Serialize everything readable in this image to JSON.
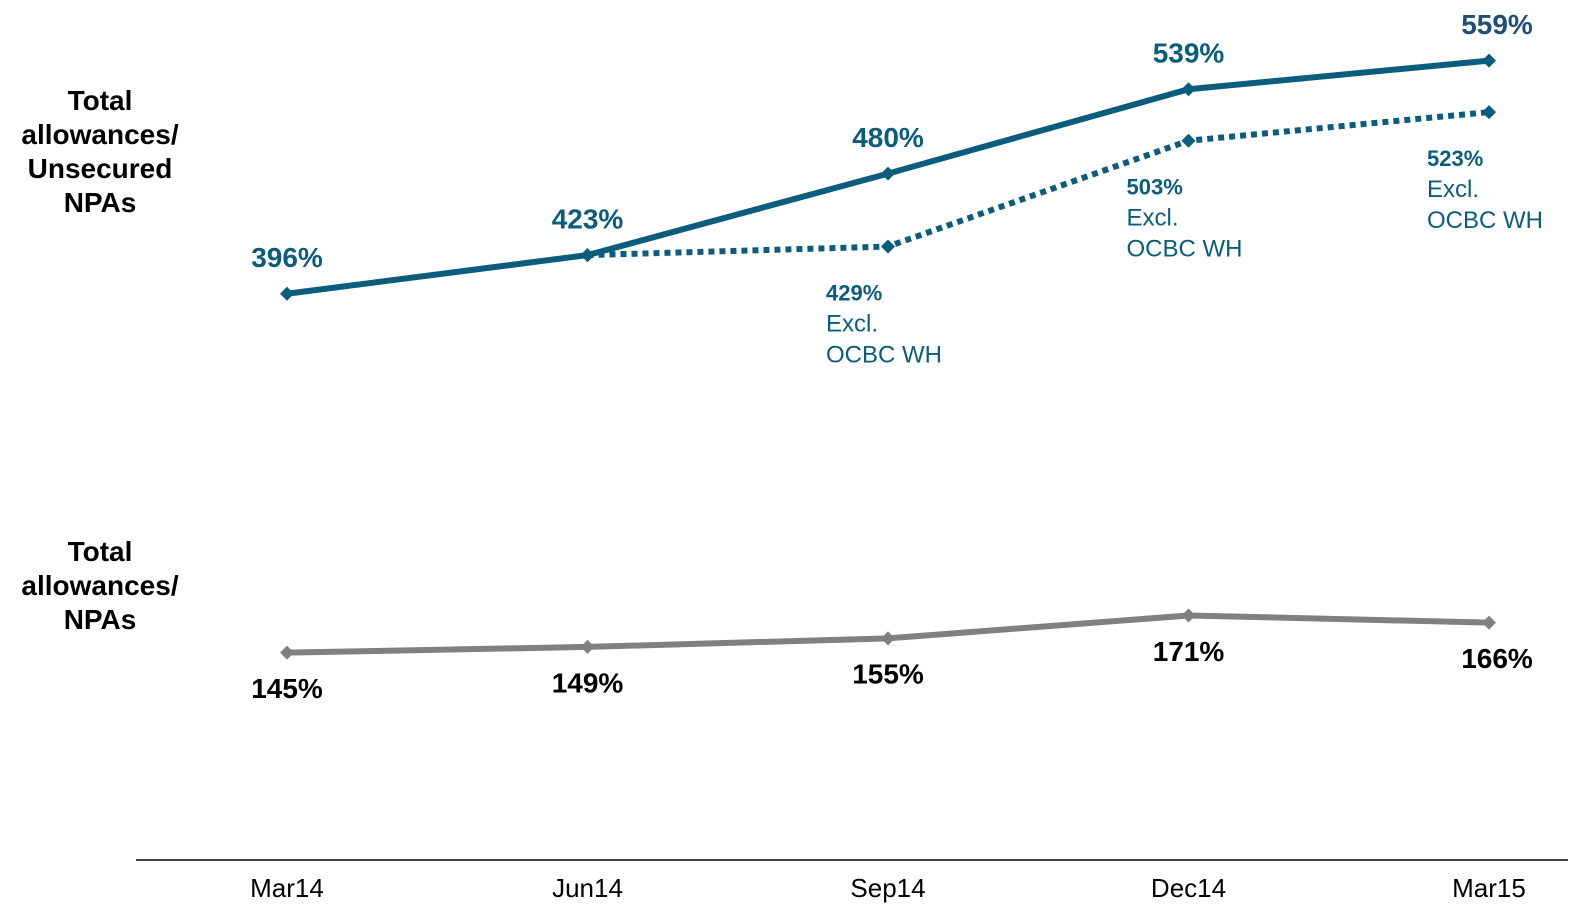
{
  "chart_data": {
    "type": "line",
    "categories": [
      "Mar14",
      "Jun14",
      "Sep14",
      "Dec14",
      "Mar15"
    ],
    "ylim": [
      0,
      600
    ],
    "series": [
      {
        "name": "Total allowances/ Unsecured NPAs",
        "color": "#0b5c7d",
        "style": "solid",
        "values": [
          396,
          423,
          480,
          539,
          559
        ],
        "value_labels": [
          "396%",
          "423%",
          "480%",
          "539%",
          "559%"
        ]
      },
      {
        "name": "Excl. OCBC WH",
        "color": "#0b5c7d",
        "style": "dotted",
        "values": [
          null,
          423,
          429,
          503,
          523
        ],
        "value_labels": [
          null,
          null,
          "429%",
          "503%",
          "523%"
        ]
      },
      {
        "name": "Total allowances/ NPAs",
        "color": "#808080",
        "style": "solid",
        "values": [
          145,
          149,
          155,
          171,
          166
        ],
        "value_labels": [
          "145%",
          "149%",
          "155%",
          "171%",
          "166%"
        ]
      }
    ]
  }
}
